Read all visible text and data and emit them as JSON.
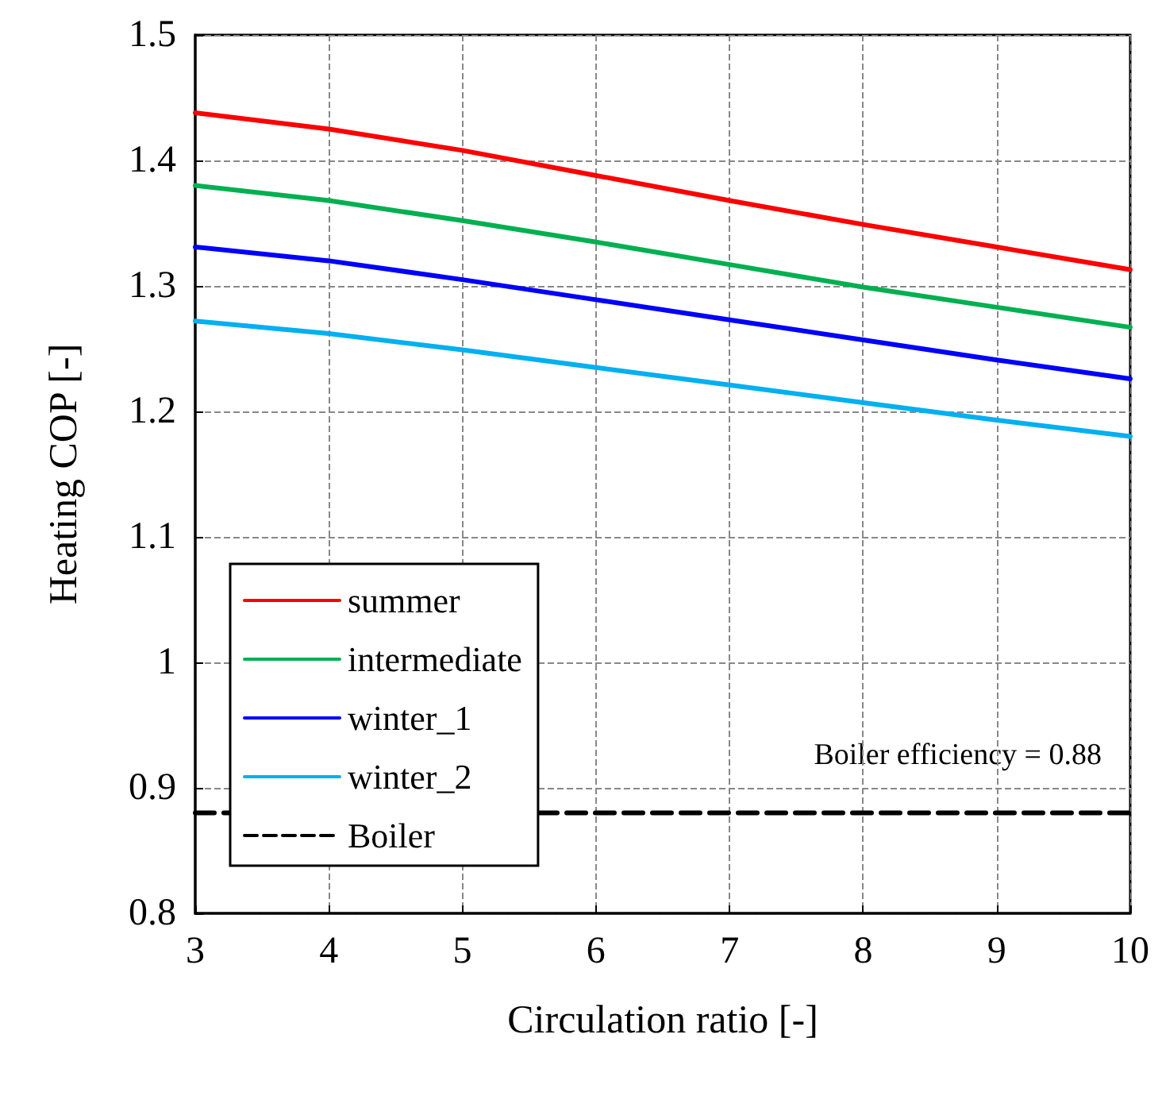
{
  "chart_data": {
    "type": "line",
    "xlabel": "Circulation ratio [-]",
    "ylabel": "Heating COP [-]",
    "x": [
      3,
      4,
      5,
      6,
      7,
      8,
      9,
      10
    ],
    "series": [
      {
        "name": "summer",
        "color": "#ff0000",
        "values": [
          1.438,
          1.425,
          1.408,
          1.388,
          1.368,
          1.349,
          1.331,
          1.313
        ]
      },
      {
        "name": "intermediate",
        "color": "#00b050",
        "values": [
          1.38,
          1.368,
          1.352,
          1.335,
          1.317,
          1.299,
          1.283,
          1.267
        ]
      },
      {
        "name": "winter_1",
        "color": "#0000ff",
        "values": [
          1.331,
          1.32,
          1.305,
          1.289,
          1.273,
          1.257,
          1.241,
          1.226
        ]
      },
      {
        "name": "winter_2",
        "color": "#00b0f0",
        "values": [
          1.272,
          1.262,
          1.249,
          1.235,
          1.221,
          1.207,
          1.193,
          1.18
        ]
      },
      {
        "name": "Boiler",
        "color": "#000000",
        "x": [
          3,
          10
        ],
        "values": [
          0.88,
          0.88
        ],
        "line_style": "dashed"
      }
    ],
    "annotations": [
      "Boiler efficiency = 0.88"
    ],
    "xlim": [
      3,
      10
    ],
    "xticks": [
      3,
      4,
      5,
      6,
      7,
      8,
      9,
      10
    ],
    "ylim": [
      0.8,
      1.5
    ],
    "yticks": [
      0.8,
      0.9,
      1,
      1.1,
      1.2,
      1.3,
      1.4,
      1.5
    ],
    "grid": true,
    "legend": "bottom left",
    "marker": "none",
    "line_style": "solid"
  }
}
